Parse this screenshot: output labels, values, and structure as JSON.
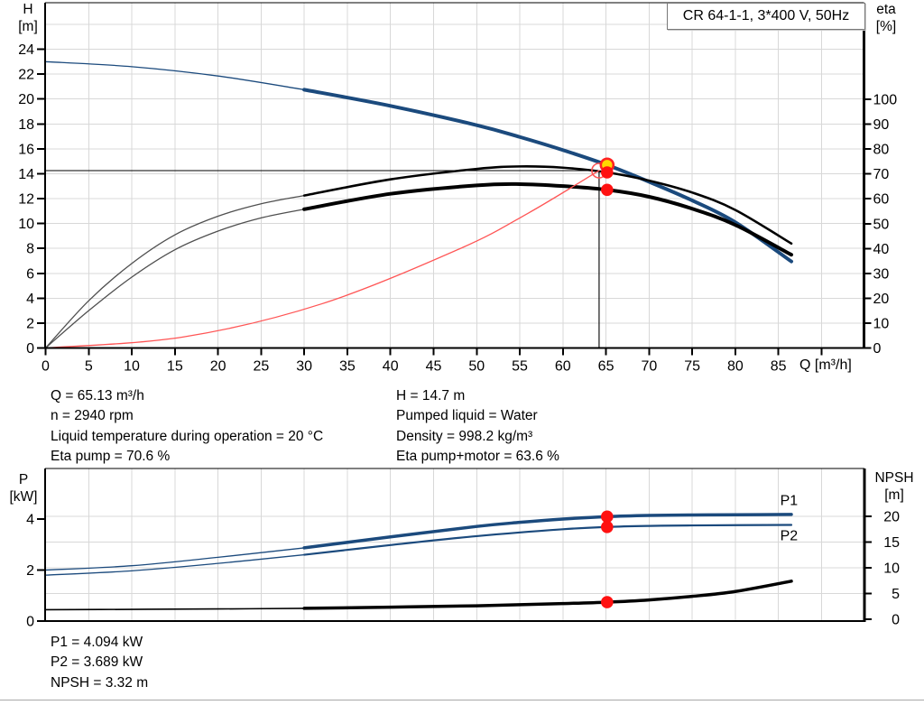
{
  "header": {
    "pump_model_title": "CR 64-1-1, 3*400 V, 50Hz"
  },
  "info_left": {
    "lines": [
      "Q = 65.13 m³/h",
      "n = 2940 rpm",
      "Liquid temperature during operation = 20 °C",
      "Eta pump = 70.6 %"
    ]
  },
  "info_right": {
    "lines": [
      "H = 14.7 m",
      "Pumped liquid = Water",
      "Density = 998.2 kg/m³",
      "Eta pump+motor = 63.6 %"
    ]
  },
  "info_bottom": {
    "lines": [
      "P1 = 4.094 kW",
      "P2 = 3.689 kW",
      "NPSH = 3.32 m"
    ]
  },
  "colors": {
    "curve_blue": "#1b4a7d",
    "curve_black": "#000000",
    "curve_gray_thin": "#4f4f4f",
    "system_curve_red": "#ff5555",
    "marker_red": "#ff1111",
    "marker_yellow": "#ffd800",
    "grid": "#d8d8d8",
    "axis": "#000000"
  },
  "chart_data": [
    {
      "name": "hq-eta-chart",
      "type": "line",
      "title": "CR 64-1-1, 3*400 V, 50Hz",
      "x_axis": {
        "label": "Q [m³/h]",
        "min": 0,
        "max": 94.9,
        "tick_values": [
          0,
          5,
          10,
          15,
          20,
          25,
          30,
          35,
          40,
          45,
          50,
          55,
          60,
          65,
          70,
          75,
          80,
          85
        ],
        "mark_values": [
          0,
          5,
          10,
          15,
          20,
          25,
          30,
          35,
          40,
          45,
          50,
          55,
          60,
          65,
          70,
          75,
          80,
          85,
          90
        ],
        "grid_values": [
          5,
          10,
          15,
          20,
          25,
          30,
          35,
          40,
          45,
          50,
          55,
          60,
          65,
          70,
          75,
          80,
          85,
          90
        ]
      },
      "y_left": {
        "title_lines": [
          "H",
          "[m]"
        ],
        "min": 0,
        "max": 27.7,
        "tick_values": [
          0,
          2,
          4,
          6,
          8,
          10,
          12,
          14,
          16,
          18,
          20,
          22,
          24
        ],
        "grid_values": [
          2,
          4,
          6,
          8,
          10,
          12,
          14,
          16,
          18,
          20,
          22,
          24,
          26
        ]
      },
      "y_right": {
        "title_lines": [
          "eta",
          "[%]"
        ],
        "min": 0,
        "max": 138,
        "tick_values": [
          0,
          10,
          20,
          30,
          40,
          50,
          60,
          70,
          80,
          90,
          100
        ]
      },
      "series": [
        {
          "name": "h-curve-low-q",
          "axis": "left",
          "color": "#1b4a7d",
          "width": 1.3,
          "points": [
            [
              0,
              23.0
            ],
            [
              10,
              22.6
            ],
            [
              20,
              21.85
            ],
            [
              30,
              20.75
            ]
          ]
        },
        {
          "name": "h-curve",
          "axis": "left",
          "color": "#1b4a7d",
          "width": 4,
          "points": [
            [
              30,
              20.75
            ],
            [
              40,
              19.45
            ],
            [
              50,
              17.9
            ],
            [
              55,
              16.95
            ],
            [
              60,
              15.9
            ],
            [
              65.13,
              14.7
            ],
            [
              70,
              13.35
            ],
            [
              75,
              11.85
            ],
            [
              80,
              10.1
            ],
            [
              86.5,
              6.95
            ]
          ]
        },
        {
          "name": "eta-pump-curve-low-q",
          "axis": "right",
          "color": "#4f4f4f",
          "width": 1.3,
          "points": [
            [
              0,
              0
            ],
            [
              5,
              19
            ],
            [
              10,
              34
            ],
            [
              15,
              45.5
            ],
            [
              20,
              53
            ],
            [
              25,
              58
            ],
            [
              30,
              61.3
            ]
          ]
        },
        {
          "name": "eta-pump-curve",
          "axis": "right",
          "color": "#000000",
          "width": 2.6,
          "points": [
            [
              30,
              61.3
            ],
            [
              40,
              67.8
            ],
            [
              50,
              72
            ],
            [
              55,
              73
            ],
            [
              60,
              72.5
            ],
            [
              65.13,
              70.6
            ],
            [
              70,
              67.3
            ],
            [
              75,
              62.5
            ],
            [
              80,
              55.5
            ],
            [
              86.5,
              42
            ]
          ]
        },
        {
          "name": "eta-pump-motor-curve-low-q",
          "axis": "right",
          "color": "#4f4f4f",
          "width": 1.3,
          "points": [
            [
              0,
              0
            ],
            [
              5,
              15
            ],
            [
              10,
              28.5
            ],
            [
              15,
              39.5
            ],
            [
              20,
              47
            ],
            [
              25,
              52.3
            ],
            [
              30,
              55.8
            ]
          ]
        },
        {
          "name": "eta-pump-motor-curve",
          "axis": "right",
          "color": "#000000",
          "width": 4,
          "points": [
            [
              30,
              55.8
            ],
            [
              40,
              62
            ],
            [
              50,
              65.4
            ],
            [
              55,
              65.9
            ],
            [
              60,
              65.1
            ],
            [
              65.13,
              63.6
            ],
            [
              70,
              60.8
            ],
            [
              75,
              56
            ],
            [
              80,
              49.5
            ],
            [
              86.5,
              37.5
            ]
          ]
        },
        {
          "name": "system-curve",
          "axis": "left",
          "color": "#ff5555",
          "width": 1.3,
          "points": [
            [
              0,
              0
            ],
            [
              16,
              0.89
            ],
            [
              32,
              3.54
            ],
            [
              48,
              7.96
            ],
            [
              56,
              10.84
            ],
            [
              64.2,
              14.25
            ]
          ]
        }
      ],
      "crosshair": {
        "q": 64.2,
        "v": 14.25,
        "axis": "left"
      },
      "markers": [
        {
          "name": "requested-duty-marker",
          "style": "open",
          "q": 64.2,
          "v": 14.25,
          "axis": "left"
        },
        {
          "name": "duty-point-h-marker",
          "style": "yellow",
          "q": 65.13,
          "v": 14.7,
          "axis": "left"
        },
        {
          "name": "duty-point-eta-pump-marker",
          "style": "red",
          "q": 65.13,
          "v": 70.6,
          "axis": "right"
        },
        {
          "name": "duty-point-eta-pump-motor-marker",
          "style": "red",
          "q": 65.13,
          "v": 63.6,
          "axis": "right"
        }
      ],
      "series_labels": []
    },
    {
      "name": "power-npsh-chart",
      "type": "line",
      "x_axis": {
        "label": "",
        "min": 0,
        "max": 95,
        "tick_values": [],
        "mark_values": [],
        "grid_values": [
          5,
          10,
          15,
          20,
          25,
          30,
          35,
          40,
          45,
          50,
          55,
          60,
          65,
          70,
          75,
          80,
          85,
          90
        ]
      },
      "y_left": {
        "title_lines": [
          "P",
          "[kW]"
        ],
        "min": 0,
        "max": 5.95,
        "tick_values": [
          0,
          2,
          4
        ]
      },
      "y_right": {
        "title_lines": [
          "NPSH",
          "[m]"
        ],
        "min": 0,
        "max": 29.2,
        "tick_values": [
          0,
          5,
          10,
          15,
          20
        ],
        "grid_values": [
          5,
          10,
          15,
          20
        ]
      },
      "series": [
        {
          "name": "p1-curve-low-q",
          "axis": "left",
          "color": "#1b4a7d",
          "width": 1.3,
          "points": [
            [
              0,
              2.0
            ],
            [
              10,
              2.17
            ],
            [
              20,
              2.5
            ],
            [
              30,
              2.87
            ]
          ]
        },
        {
          "name": "p1-curve",
          "axis": "left",
          "color": "#1b4a7d",
          "width": 3.5,
          "points": [
            [
              30,
              2.87
            ],
            [
              40,
              3.3
            ],
            [
              50,
              3.71
            ],
            [
              55,
              3.87
            ],
            [
              60,
              4.0
            ],
            [
              65.13,
              4.094
            ],
            [
              70,
              4.14
            ],
            [
              75,
              4.16
            ],
            [
              80,
              4.17
            ],
            [
              86.5,
              4.18
            ]
          ]
        },
        {
          "name": "p2-curve-low-q",
          "axis": "left",
          "color": "#1b4a7d",
          "width": 1.3,
          "points": [
            [
              0,
              1.8
            ],
            [
              10,
              1.97
            ],
            [
              20,
              2.26
            ],
            [
              30,
              2.6
            ]
          ]
        },
        {
          "name": "p2-curve",
          "axis": "left",
          "color": "#1b4a7d",
          "width": 2.2,
          "points": [
            [
              30,
              2.6
            ],
            [
              40,
              2.98
            ],
            [
              50,
              3.33
            ],
            [
              60,
              3.6
            ],
            [
              65.13,
              3.689
            ],
            [
              70,
              3.73
            ],
            [
              75,
              3.75
            ],
            [
              86.5,
              3.77
            ]
          ]
        },
        {
          "name": "npsh-curve-low-q",
          "axis": "right",
          "color": "#000000",
          "width": 1.6,
          "points": [
            [
              0,
              1.85
            ],
            [
              10,
              1.92
            ],
            [
              20,
              2.0
            ],
            [
              30,
              2.12
            ]
          ]
        },
        {
          "name": "npsh-curve",
          "axis": "right",
          "color": "#000000",
          "width": 3.5,
          "points": [
            [
              30,
              2.12
            ],
            [
              40,
              2.35
            ],
            [
              50,
              2.62
            ],
            [
              60,
              3.05
            ],
            [
              65.13,
              3.32
            ],
            [
              70,
              3.75
            ],
            [
              75,
              4.45
            ],
            [
              80,
              5.4
            ],
            [
              86.5,
              7.4
            ]
          ]
        }
      ],
      "markers": [
        {
          "name": "duty-point-p1-marker",
          "style": "red",
          "q": 65.13,
          "v": 4.094,
          "axis": "left"
        },
        {
          "name": "duty-point-p2-marker",
          "style": "red",
          "q": 65.13,
          "v": 3.689,
          "axis": "left"
        },
        {
          "name": "duty-point-npsh-marker",
          "style": "red",
          "q": 65.13,
          "v": 3.32,
          "axis": "right"
        }
      ],
      "series_labels": [
        {
          "name": "p1-curve-label",
          "text": "P1",
          "q": 85.2,
          "v": 4.72,
          "color": "#1b4a7d"
        },
        {
          "name": "p2-curve-label",
          "text": "P2",
          "q": 85.2,
          "v": 3.35,
          "color": "#1b4a7d"
        }
      ]
    }
  ]
}
